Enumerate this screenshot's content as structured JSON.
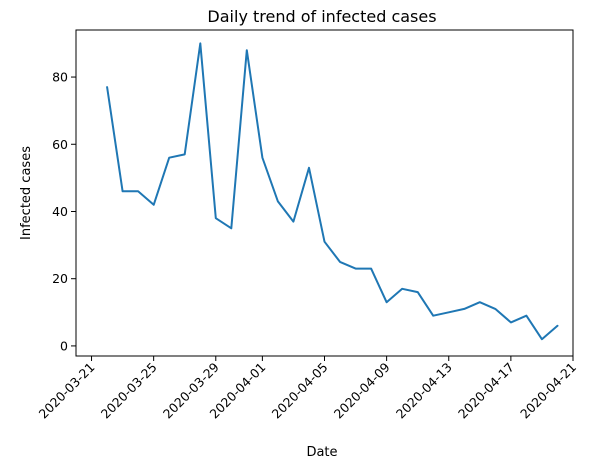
{
  "chart_data": {
    "type": "line",
    "title": "Daily trend of infected cases",
    "xlabel": "Date",
    "ylabel": "Infected cases",
    "grid": false,
    "ylim": [
      -3,
      94
    ],
    "xlim": [
      "2020-03-20",
      "2020-04-21"
    ],
    "x_ticks": [
      "2020-03-21",
      "2020-03-25",
      "2020-03-29",
      "2020-04-01",
      "2020-04-05",
      "2020-04-09",
      "2020-04-13",
      "2020-04-17",
      "2020-04-21"
    ],
    "y_ticks": [
      0,
      20,
      40,
      60,
      80
    ],
    "series": [
      {
        "color": "#1f77b4",
        "x": [
          "2020-03-22",
          "2020-03-23",
          "2020-03-24",
          "2020-03-25",
          "2020-03-26",
          "2020-03-27",
          "2020-03-28",
          "2020-03-29",
          "2020-03-30",
          "2020-03-31",
          "2020-04-01",
          "2020-04-02",
          "2020-04-03",
          "2020-04-04",
          "2020-04-05",
          "2020-04-06",
          "2020-04-07",
          "2020-04-08",
          "2020-04-09",
          "2020-04-10",
          "2020-04-11",
          "2020-04-12",
          "2020-04-13",
          "2020-04-14",
          "2020-04-15",
          "2020-04-16",
          "2020-04-17",
          "2020-04-18",
          "2020-04-19",
          "2020-04-20"
        ],
        "values": [
          77,
          46,
          46,
          42,
          56,
          57,
          90,
          38,
          35,
          88,
          56,
          43,
          37,
          53,
          31,
          25,
          23,
          23,
          13,
          17,
          16,
          9,
          10,
          11,
          13,
          11,
          7,
          9,
          2,
          6
        ]
      }
    ]
  }
}
